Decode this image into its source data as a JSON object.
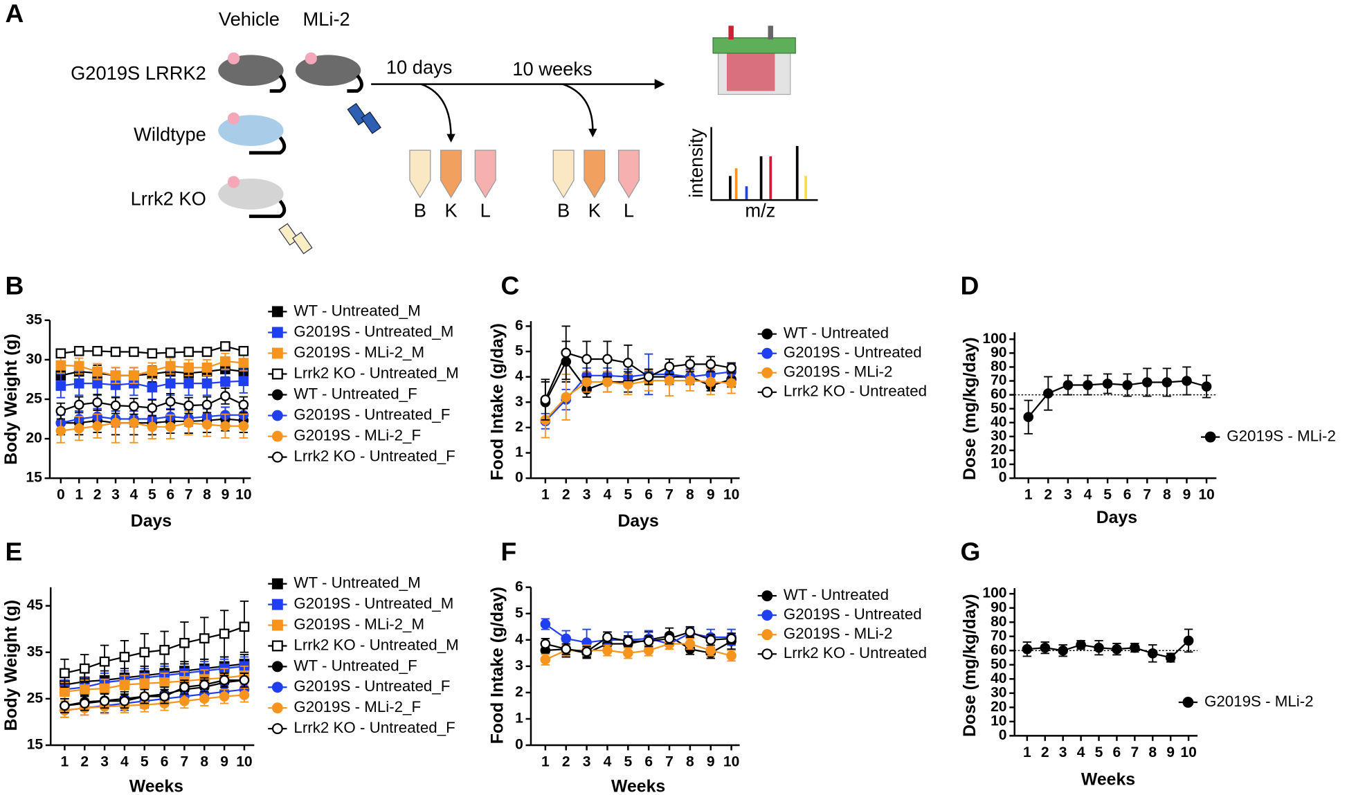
{
  "schematic": {
    "panel": "A",
    "groups": [
      "Vehicle",
      "MLi-2"
    ],
    "genotypes": [
      "G2019S LRRK2",
      "Wildtype",
      "Lrrk2 KO"
    ],
    "timepoints": [
      "10 days",
      "10 weeks"
    ],
    "tissues": [
      "B",
      "K",
      "L"
    ],
    "spectrum_y": "intensity",
    "spectrum_x": "m/z"
  },
  "chart_data": [
    {
      "type": "line",
      "panel": "B",
      "x_label": "Days",
      "y_label": "Body Weight (g)",
      "xlim": [
        -0.6,
        10.4
      ],
      "ylim": [
        15,
        35
      ],
      "yticks": [
        15,
        20,
        25,
        30,
        35
      ],
      "xticks": [
        0,
        1,
        2,
        3,
        4,
        5,
        6,
        7,
        8,
        9,
        10
      ],
      "x": [
        0,
        1,
        2,
        3,
        4,
        5,
        6,
        7,
        8,
        9,
        10
      ],
      "series": [
        {
          "name": "WT - Untreated_M",
          "color": "#000000",
          "marker": "square",
          "filled": true,
          "values": [
            28,
            28.5,
            28.3,
            28,
            28,
            28.2,
            28.5,
            28.3,
            28.5,
            28.8,
            28.5
          ],
          "errors": [
            1,
            1,
            1,
            1,
            1,
            1,
            1,
            1,
            1,
            1,
            1
          ]
        },
        {
          "name": "G2019S - Untreated_M",
          "color": "#1f3ff0",
          "marker": "square",
          "filled": true,
          "values": [
            26.7,
            27,
            27,
            26.8,
            27,
            26.5,
            27,
            27,
            27,
            27.2,
            27.3
          ],
          "errors": [
            1.5,
            1.5,
            1.5,
            1.5,
            1.5,
            1.5,
            1.5,
            1.5,
            1.5,
            1.5,
            1.5
          ]
        },
        {
          "name": "G2019S - MLi-2_M",
          "color": "#f7941d",
          "marker": "square",
          "filled": true,
          "values": [
            29.3,
            29.2,
            28.5,
            28,
            28,
            28.6,
            29.2,
            29,
            29,
            29.8,
            29.6
          ],
          "errors": [
            1,
            1,
            1,
            1,
            1,
            1,
            1,
            1,
            1,
            1,
            1
          ]
        },
        {
          "name": "Lrrk2 KO - Untreated_M",
          "color": "#000000",
          "marker": "square",
          "filled": false,
          "values": [
            30.8,
            31.1,
            31.1,
            31,
            31,
            30.8,
            30.9,
            31,
            31,
            31.7,
            31.1
          ],
          "errors": [
            0.5,
            0.5,
            0.5,
            0.5,
            0.5,
            0.5,
            0.5,
            0.5,
            0.5,
            0.5,
            0.5
          ]
        },
        {
          "name": "WT - Untreated_F",
          "color": "#000000",
          "marker": "circle",
          "filled": true,
          "values": [
            22,
            22,
            22.3,
            22,
            22,
            22,
            22.2,
            22.2,
            22.3,
            22.5,
            22.3
          ],
          "errors": [
            1.5,
            1.5,
            1.5,
            1.5,
            1.5,
            1.5,
            1.5,
            1.5,
            1.5,
            1.5,
            1.5
          ]
        },
        {
          "name": "G2019S - Untreated_F",
          "color": "#1f3ff0",
          "marker": "circle",
          "filled": true,
          "values": [
            22,
            22.5,
            22.8,
            22.5,
            22.5,
            22.5,
            22.8,
            22.6,
            22.8,
            23,
            23
          ],
          "errors": [
            1,
            1,
            1,
            1,
            1,
            1,
            1,
            1,
            1,
            1,
            1
          ]
        },
        {
          "name": "G2019S - MLi-2_F",
          "color": "#f7941d",
          "marker": "circle",
          "filled": true,
          "values": [
            21,
            21.3,
            21.6,
            22,
            22,
            21.5,
            21.5,
            22,
            21.8,
            21.6,
            21.6
          ],
          "errors": [
            1.5,
            1.5,
            1.5,
            2.5,
            2.5,
            1.5,
            1.5,
            1.5,
            1.5,
            1.5,
            1.5
          ]
        },
        {
          "name": "Lrrk2 KO - Untreated_F",
          "color": "#000000",
          "marker": "circle",
          "filled": false,
          "values": [
            23.5,
            24.3,
            24.6,
            24.2,
            24.1,
            23.9,
            24.7,
            24.2,
            24.3,
            25.4,
            24.3
          ],
          "errors": [
            1,
            1,
            1,
            1,
            1,
            1,
            1,
            1,
            1,
            1,
            1
          ]
        }
      ]
    },
    {
      "type": "line",
      "panel": "C",
      "x_label": "Days",
      "y_label": "Food Intake (g/day)",
      "xlim": [
        0.3,
        10.4
      ],
      "ylim": [
        0,
        6.2
      ],
      "yticks": [
        0,
        1,
        2,
        3,
        4,
        5,
        6
      ],
      "xticks": [
        1,
        2,
        3,
        4,
        5,
        6,
        7,
        8,
        9,
        10
      ],
      "x": [
        1,
        2,
        3,
        4,
        5,
        6,
        7,
        8,
        9,
        10
      ],
      "series": [
        {
          "name": "WT - Untreated",
          "color": "#000000",
          "marker": "circle",
          "filled": true,
          "values": [
            3,
            4.6,
            3.5,
            3.8,
            3.8,
            4.0,
            4.0,
            4.0,
            3.65,
            3.9
          ],
          "errors": [
            0.8,
            0.8,
            0.3,
            0.4,
            0.4,
            0.3,
            0.3,
            0.3,
            0.2,
            0.3
          ]
        },
        {
          "name": "G2019S - Untreated",
          "color": "#1f3ff0",
          "marker": "circle",
          "filled": true,
          "values": [
            2.25,
            3.1,
            4.05,
            4.05,
            4.0,
            4.1,
            4.1,
            4.0,
            4.1,
            4.2
          ],
          "errors": [
            0.3,
            0.4,
            0.3,
            0.3,
            0.3,
            0.8,
            0.4,
            0.3,
            0.3,
            0.3
          ]
        },
        {
          "name": "G2019S - MLi-2",
          "color": "#f7941d",
          "marker": "circle",
          "filled": true,
          "values": [
            2.3,
            3.2,
            3.8,
            3.8,
            3.7,
            3.85,
            3.85,
            3.85,
            3.8,
            3.75
          ],
          "errors": [
            0.7,
            0.9,
            0.4,
            0.4,
            0.4,
            0.4,
            0.6,
            0.4,
            0.5,
            0.4
          ]
        },
        {
          "name": "Lrrk2 KO - Untreated",
          "color": "#000000",
          "marker": "circle",
          "filled": false,
          "values": [
            3.1,
            4.95,
            4.7,
            4.7,
            4.55,
            4.0,
            4.4,
            4.5,
            4.5,
            4.35
          ],
          "errors": [
            0.8,
            1.05,
            0.7,
            0.7,
            0.7,
            0.3,
            0.3,
            0.3,
            0.3,
            0.2
          ]
        }
      ]
    },
    {
      "type": "line",
      "panel": "D",
      "x_label": "Days",
      "y_label": "Dose (mg/kg/day)",
      "xlim": [
        0.3,
        10.5
      ],
      "ylim": [
        0,
        105
      ],
      "yticks": [
        0,
        10,
        20,
        30,
        40,
        50,
        60,
        70,
        80,
        90,
        100
      ],
      "xticks": [
        1,
        2,
        3,
        4,
        5,
        6,
        7,
        8,
        9,
        10
      ],
      "x": [
        1,
        2,
        3,
        4,
        5,
        6,
        7,
        8,
        9,
        10
      ],
      "reference_line": 60,
      "series": [
        {
          "name": "G2019S - MLi-2",
          "color": "#000000",
          "marker": "circle",
          "filled": true,
          "values": [
            44,
            61,
            67,
            67,
            68,
            67,
            69,
            69,
            70,
            66
          ],
          "errors": [
            12,
            12,
            7,
            7,
            7,
            8,
            10,
            10,
            10,
            8
          ]
        }
      ]
    },
    {
      "type": "line",
      "panel": "E",
      "x_label": "Weeks",
      "y_label": "Body Weight (g)",
      "xlim": [
        0.3,
        10.5
      ],
      "ylim": [
        15,
        49
      ],
      "yticks": [
        15,
        25,
        35,
        45
      ],
      "xticks": [
        1,
        2,
        3,
        4,
        5,
        6,
        7,
        8,
        9,
        10
      ],
      "x": [
        1,
        2,
        3,
        4,
        5,
        6,
        7,
        8,
        9,
        10
      ],
      "series": [
        {
          "name": "WT - Untreated_M",
          "color": "#000000",
          "marker": "square",
          "filled": true,
          "values": [
            28,
            28.7,
            29,
            29.5,
            30,
            30.5,
            31,
            31.5,
            32,
            32.5
          ],
          "errors": [
            2,
            2,
            2,
            2,
            2,
            2,
            2,
            2,
            2,
            2
          ]
        },
        {
          "name": "G2019S - Untreated_M",
          "color": "#1f3ff0",
          "marker": "square",
          "filled": true,
          "values": [
            27,
            27.5,
            28.5,
            29,
            29.5,
            30,
            30.5,
            31,
            31.5,
            32
          ],
          "errors": [
            2,
            2,
            2,
            2,
            2,
            2,
            2,
            2,
            2,
            2
          ]
        },
        {
          "name": "G2019S - MLi-2_M",
          "color": "#f7941d",
          "marker": "square",
          "filled": true,
          "values": [
            26.5,
            27,
            27.2,
            28,
            28.3,
            28.5,
            28.8,
            29.2,
            29.5,
            30
          ],
          "errors": [
            2,
            2,
            2,
            2,
            2,
            2,
            2,
            2,
            2,
            2
          ]
        },
        {
          "name": "Lrrk2 KO - Untreated_M",
          "color": "#000000",
          "marker": "square",
          "filled": false,
          "values": [
            30.5,
            31.5,
            33,
            34,
            35,
            35.5,
            37,
            38,
            39,
            40.5
          ],
          "errors": [
            3,
            3,
            3.5,
            3.5,
            4,
            4,
            4.5,
            4.5,
            5,
            5.5
          ]
        },
        {
          "name": "WT - Untreated_F",
          "color": "#000000",
          "marker": "circle",
          "filled": true,
          "values": [
            23.5,
            24.3,
            24.6,
            25,
            25.5,
            26,
            27,
            27.5,
            28.5,
            29
          ],
          "errors": [
            1.5,
            1.5,
            1.5,
            1.5,
            1.5,
            1.5,
            1.5,
            1.5,
            1.5,
            1.5
          ]
        },
        {
          "name": "G2019S - Untreated_F",
          "color": "#1f3ff0",
          "marker": "circle",
          "filled": true,
          "values": [
            22.5,
            23,
            23.5,
            24,
            24.5,
            25,
            25.5,
            26,
            26.5,
            27
          ],
          "errors": [
            1.5,
            1.5,
            1.5,
            1.5,
            1.5,
            1.5,
            1.5,
            1.5,
            1.5,
            1.5
          ]
        },
        {
          "name": "G2019S - MLi-2_F",
          "color": "#f7941d",
          "marker": "circle",
          "filled": true,
          "values": [
            22.5,
            23,
            23.3,
            23.5,
            23.7,
            24,
            24.5,
            25,
            25.5,
            25.8
          ],
          "errors": [
            1.5,
            1.5,
            1.5,
            1.5,
            1.5,
            1.5,
            1.5,
            1.5,
            1.5,
            1.5
          ]
        },
        {
          "name": "Lrrk2 KO - Untreated_F",
          "color": "#000000",
          "marker": "circle",
          "filled": false,
          "values": [
            23.5,
            24,
            24.5,
            24.5,
            25.5,
            25.5,
            27.5,
            28,
            29,
            29
          ],
          "errors": [
            1.5,
            1.5,
            1.5,
            1.5,
            1.5,
            1.5,
            1.5,
            1.5,
            1.5,
            1.5
          ]
        }
      ]
    },
    {
      "type": "line",
      "panel": "F",
      "x_label": "Weeks",
      "y_label": "Food Intake (g/day)",
      "xlim": [
        0.3,
        10.4
      ],
      "ylim": [
        0,
        6
      ],
      "yticks": [
        0,
        1,
        2,
        3,
        4,
        5,
        6
      ],
      "xticks": [
        1,
        2,
        3,
        4,
        5,
        6,
        7,
        8,
        9,
        10
      ],
      "x": [
        1,
        2,
        3,
        4,
        5,
        6,
        7,
        8,
        9,
        10
      ],
      "series": [
        {
          "name": "WT - Untreated",
          "color": "#000000",
          "marker": "circle",
          "filled": true,
          "values": [
            3.6,
            3.65,
            3.5,
            3.85,
            3.85,
            4.0,
            4.15,
            3.65,
            3.5,
            3.95
          ],
          "errors": [
            0.3,
            0.3,
            0.2,
            0.3,
            0.3,
            0.3,
            0.3,
            0.2,
            0.2,
            0.3
          ]
        },
        {
          "name": "G2019S - Untreated",
          "color": "#1f3ff0",
          "marker": "circle",
          "filled": true,
          "values": [
            4.6,
            4.05,
            3.9,
            4.0,
            4.0,
            4.05,
            3.85,
            4.25,
            4.1,
            4.1
          ],
          "errors": [
            0.2,
            0.3,
            0.5,
            0.3,
            0.3,
            0.3,
            0.2,
            0.2,
            0.3,
            0.3
          ]
        },
        {
          "name": "G2019S - MLi-2",
          "color": "#f7941d",
          "marker": "circle",
          "filled": true,
          "values": [
            3.25,
            3.6,
            3.6,
            3.6,
            3.5,
            3.6,
            3.85,
            3.85,
            3.6,
            3.4
          ],
          "errors": [
            0.2,
            0.2,
            0.2,
            0.2,
            0.2,
            0.2,
            0.2,
            0.2,
            0.2,
            0.2
          ]
        },
        {
          "name": "Lrrk2 KO - Untreated",
          "color": "#000000",
          "marker": "circle",
          "filled": false,
          "values": [
            3.85,
            3.65,
            3.55,
            4.1,
            3.95,
            3.95,
            4.05,
            4.3,
            4.0,
            4.05
          ],
          "errors": [
            0.2,
            0.2,
            0.2,
            0.2,
            0.2,
            0.2,
            0.2,
            0.2,
            0.2,
            0.2
          ]
        }
      ]
    },
    {
      "type": "line",
      "panel": "G",
      "x_label": "Weeks",
      "y_label": "Dose (mg/kg/day)",
      "xlim": [
        0.3,
        10.5
      ],
      "ylim": [
        0,
        104
      ],
      "yticks": [
        0,
        10,
        20,
        30,
        40,
        50,
        60,
        70,
        80,
        90,
        100
      ],
      "xticks": [
        1,
        2,
        3,
        4,
        5,
        6,
        7,
        8,
        9,
        10
      ],
      "x": [
        1,
        2,
        3,
        4,
        5,
        6,
        7,
        8,
        9,
        10
      ],
      "reference_line": 60,
      "series": [
        {
          "name": "G2019S - MLi-2",
          "color": "#000000",
          "marker": "circle",
          "filled": true,
          "values": [
            61,
            62,
            60,
            64,
            62,
            61,
            62,
            58,
            55,
            67
          ],
          "errors": [
            5,
            4,
            4,
            3,
            5,
            4,
            3,
            6,
            3,
            8
          ]
        }
      ]
    }
  ]
}
